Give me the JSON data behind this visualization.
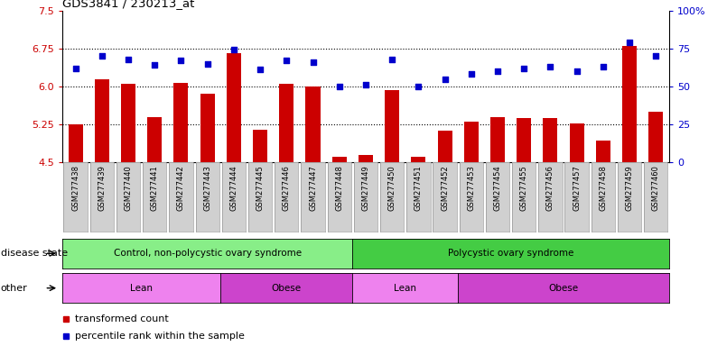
{
  "title": "GDS3841 / 230213_at",
  "samples": [
    "GSM277438",
    "GSM277439",
    "GSM277440",
    "GSM277441",
    "GSM277442",
    "GSM277443",
    "GSM277444",
    "GSM277445",
    "GSM277446",
    "GSM277447",
    "GSM277448",
    "GSM277449",
    "GSM277450",
    "GSM277451",
    "GSM277452",
    "GSM277453",
    "GSM277454",
    "GSM277455",
    "GSM277456",
    "GSM277457",
    "GSM277458",
    "GSM277459",
    "GSM277460"
  ],
  "bar_values": [
    5.25,
    6.15,
    6.05,
    5.4,
    6.07,
    5.85,
    6.65,
    5.15,
    6.05,
    6.0,
    4.62,
    4.65,
    5.93,
    4.62,
    5.13,
    5.3,
    5.4,
    5.38,
    5.38,
    5.28,
    4.93,
    6.8,
    5.5
  ],
  "blue_values": [
    62,
    70,
    68,
    64,
    67,
    65,
    74,
    61,
    67,
    66,
    50,
    51,
    68,
    50,
    55,
    58,
    60,
    62,
    63,
    60,
    63,
    79,
    70
  ],
  "ylim_left": [
    4.5,
    7.5
  ],
  "ylim_right": [
    0,
    100
  ],
  "yticks_left": [
    4.5,
    5.25,
    6.0,
    6.75,
    7.5
  ],
  "yticks_right": [
    0,
    25,
    50,
    75,
    100
  ],
  "bar_color": "#cc0000",
  "dot_color": "#0000cc",
  "tick_bg": "#d0d0d0",
  "hlines": [
    5.25,
    6.0,
    6.75
  ],
  "disease_groups": [
    {
      "label": "Control, non-polycystic ovary syndrome",
      "start": 0,
      "end": 10,
      "color": "#88ee88"
    },
    {
      "label": "Polycystic ovary syndrome",
      "start": 11,
      "end": 22,
      "color": "#44cc44"
    }
  ],
  "other_groups": [
    {
      "label": "Lean",
      "start": 0,
      "end": 5,
      "color": "#ee82ee"
    },
    {
      "label": "Obese",
      "start": 6,
      "end": 10,
      "color": "#cc44cc"
    },
    {
      "label": "Lean",
      "start": 11,
      "end": 14,
      "color": "#ee82ee"
    },
    {
      "label": "Obese",
      "start": 15,
      "end": 22,
      "color": "#cc44cc"
    }
  ],
  "disease_label": "disease state",
  "other_label": "other",
  "legend_bar_label": "transformed count",
  "legend_dot_label": "percentile rank within the sample"
}
